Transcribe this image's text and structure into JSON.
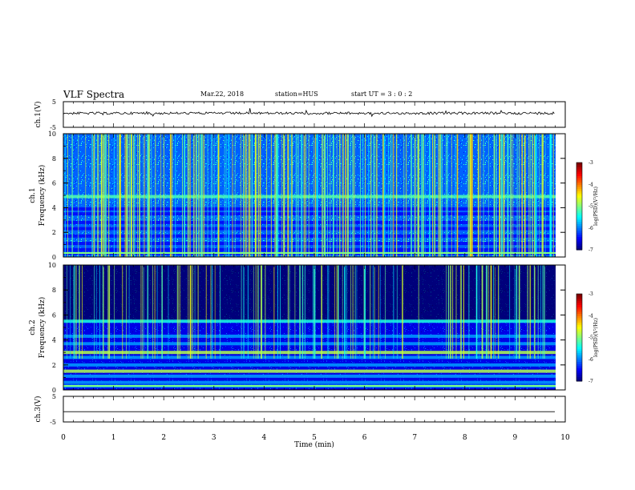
{
  "header": {
    "title": "VLF Spectra",
    "date": "Mar.22, 2018",
    "station": "station=HUS",
    "start": "start UT =  3 : 0 : 2"
  },
  "chart_data": {
    "type": "heatmap",
    "title": "VLF Spectra",
    "xlabel": "Time (min)",
    "xlim": [
      0,
      10
    ],
    "xticks": [
      "0",
      "1",
      "2",
      "3",
      "4",
      "5",
      "6",
      "7",
      "8",
      "9",
      "10"
    ],
    "panels": [
      {
        "name": "ch.1(V)",
        "kind": "waveform",
        "ylabel": "ch.1(V)",
        "ylim": [
          -5,
          5
        ],
        "yticks": [
          "5",
          "-5"
        ],
        "baseline_v": 0.5
      },
      {
        "name": "ch.1 spectrogram",
        "kind": "spectrogram",
        "ylabel_top": "ch.1",
        "ylabel": "Frequency (kHz)",
        "ylim": [
          0,
          10
        ],
        "yticks": [
          "0",
          "2",
          "4",
          "6",
          "8",
          "10"
        ],
        "bands_khz": [
          0.3,
          0.6,
          1.1,
          1.7,
          2.3,
          2.8,
          3.5,
          3.9,
          4.9
        ],
        "colorbar": {
          "label": "log(PSD)(V²/Hz)",
          "range": [
            -7,
            -3
          ],
          "ticks": [
            "-3",
            "-4",
            "-5",
            "-6",
            "-7"
          ]
        }
      },
      {
        "name": "ch.2 spectrogram",
        "kind": "spectrogram",
        "ylabel_top": "ch.2",
        "ylabel": "Frequency (kHz)",
        "ylim": [
          0,
          10
        ],
        "yticks": [
          "0",
          "2",
          "4",
          "6",
          "8",
          "10"
        ],
        "bands_khz": [
          0.3,
          0.6,
          1.1,
          1.5,
          2.0,
          2.6,
          3.0,
          3.7,
          4.3,
          5.5
        ],
        "colorbar": {
          "label": "log(PSD)(V²/Hz)",
          "range": [
            -7,
            -3
          ],
          "ticks": [
            "-3",
            "-4",
            "-5",
            "-6",
            "-7"
          ]
        }
      },
      {
        "name": "ch.3(V)",
        "kind": "waveform",
        "ylabel": "ch.3(V)",
        "ylim": [
          -5,
          5
        ],
        "yticks": [
          "5",
          "-5"
        ],
        "baseline_v": -1.0
      }
    ],
    "grid": false
  },
  "colors": {
    "background": "#ffffff",
    "axis": "#000000",
    "spectrogram_low": "#000030",
    "spectrogram_mid": "#1e7bff",
    "spectrogram_high": "#33ff66"
  }
}
